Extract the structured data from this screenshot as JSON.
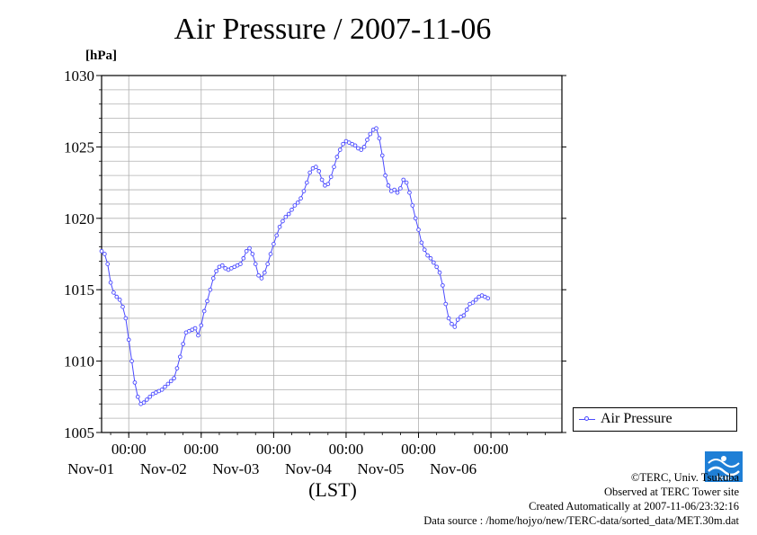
{
  "title": "Air Pressure / 2007-11-06",
  "unit_label": "[hPa]",
  "x_axis_label": "(LST)",
  "legend": {
    "label": "Air Pressure"
  },
  "credits": {
    "copyright": "©TERC, Univ. Tsukuba",
    "observed": "Observed at TERC Tower site",
    "created": "Created Automatically at 2007-11-06/23:32:16",
    "source": "Data source : /home/hojyo/new/TERC-data/sorted_data/MET.30m.dat"
  },
  "logo": {
    "icon": "terc-logo-icon",
    "text": "TERC"
  },
  "colors": {
    "series": "#4a4aff",
    "grid": "#b0b0b0",
    "axis": "#000000"
  },
  "chart_data": {
    "type": "line",
    "title": "Air Pressure / 2007-11-06",
    "ylabel": "[hPa]",
    "xlabel": "(LST)",
    "ylim": [
      1005,
      1030
    ],
    "yticks": [
      "1005",
      "1010",
      "1015",
      "1020",
      "1025",
      "1030"
    ],
    "xlim": [
      "2007-10-31 15:00",
      "2007-11-06 23:30"
    ],
    "xticks": [
      {
        "time": "00:00",
        "date": "Nov-01"
      },
      {
        "time": "00:00",
        "date": "Nov-02"
      },
      {
        "time": "00:00",
        "date": "Nov-03"
      },
      {
        "time": "00:00",
        "date": "Nov-04"
      },
      {
        "time": "00:00",
        "date": "Nov-05"
      },
      {
        "time": "00:00",
        "date": "Nov-06"
      }
    ],
    "grid": true,
    "legend_position": "right-bottom",
    "series": [
      {
        "name": "Air Pressure",
        "points": [
          [
            "2007-10-31 15:00",
            1017.7
          ],
          [
            "2007-10-31 16:00",
            1017.5
          ],
          [
            "2007-10-31 17:00",
            1016.8
          ],
          [
            "2007-10-31 18:00",
            1015.5
          ],
          [
            "2007-10-31 19:00",
            1014.8
          ],
          [
            "2007-10-31 20:00",
            1014.5
          ],
          [
            "2007-10-31 21:00",
            1014.3
          ],
          [
            "2007-10-31 22:00",
            1013.8
          ],
          [
            "2007-10-31 23:00",
            1013.0
          ],
          [
            "2007-11-01 00:00",
            1011.5
          ],
          [
            "2007-11-01 01:00",
            1010.0
          ],
          [
            "2007-11-01 02:00",
            1008.5
          ],
          [
            "2007-11-01 03:00",
            1007.5
          ],
          [
            "2007-11-01 04:00",
            1007.0
          ],
          [
            "2007-11-01 05:00",
            1007.1
          ],
          [
            "2007-11-01 06:00",
            1007.3
          ],
          [
            "2007-11-01 07:00",
            1007.5
          ],
          [
            "2007-11-01 08:00",
            1007.7
          ],
          [
            "2007-11-01 09:00",
            1007.8
          ],
          [
            "2007-11-01 10:00",
            1007.9
          ],
          [
            "2007-11-01 11:00",
            1008.0
          ],
          [
            "2007-11-01 12:00",
            1008.2
          ],
          [
            "2007-11-01 13:00",
            1008.4
          ],
          [
            "2007-11-01 14:00",
            1008.6
          ],
          [
            "2007-11-01 15:00",
            1008.8
          ],
          [
            "2007-11-01 16:00",
            1009.5
          ],
          [
            "2007-11-01 17:00",
            1010.3
          ],
          [
            "2007-11-01 18:00",
            1011.2
          ],
          [
            "2007-11-01 19:00",
            1012.0
          ],
          [
            "2007-11-01 20:00",
            1012.1
          ],
          [
            "2007-11-01 21:00",
            1012.2
          ],
          [
            "2007-11-01 22:00",
            1012.3
          ],
          [
            "2007-11-01 23:00",
            1011.8
          ],
          [
            "2007-11-02 00:00",
            1012.5
          ],
          [
            "2007-11-02 01:00",
            1013.5
          ],
          [
            "2007-11-02 02:00",
            1014.2
          ],
          [
            "2007-11-02 03:00",
            1015.0
          ],
          [
            "2007-11-02 04:00",
            1015.8
          ],
          [
            "2007-11-02 05:00",
            1016.3
          ],
          [
            "2007-11-02 06:00",
            1016.6
          ],
          [
            "2007-11-02 07:00",
            1016.7
          ],
          [
            "2007-11-02 08:00",
            1016.5
          ],
          [
            "2007-11-02 09:00",
            1016.4
          ],
          [
            "2007-11-02 10:00",
            1016.5
          ],
          [
            "2007-11-02 11:00",
            1016.6
          ],
          [
            "2007-11-02 12:00",
            1016.7
          ],
          [
            "2007-11-02 13:00",
            1016.8
          ],
          [
            "2007-11-02 14:00",
            1017.2
          ],
          [
            "2007-11-02 15:00",
            1017.7
          ],
          [
            "2007-11-02 16:00",
            1017.9
          ],
          [
            "2007-11-02 17:00",
            1017.5
          ],
          [
            "2007-11-02 18:00",
            1016.8
          ],
          [
            "2007-11-02 19:00",
            1016.0
          ],
          [
            "2007-11-02 20:00",
            1015.8
          ],
          [
            "2007-11-02 21:00",
            1016.2
          ],
          [
            "2007-11-02 22:00",
            1016.8
          ],
          [
            "2007-11-02 23:00",
            1017.5
          ],
          [
            "2007-11-03 00:00",
            1018.2
          ],
          [
            "2007-11-03 01:00",
            1018.8
          ],
          [
            "2007-11-03 02:00",
            1019.4
          ],
          [
            "2007-11-03 03:00",
            1019.8
          ],
          [
            "2007-11-03 04:00",
            1020.1
          ],
          [
            "2007-11-03 05:00",
            1020.3
          ],
          [
            "2007-11-03 06:00",
            1020.6
          ],
          [
            "2007-11-03 07:00",
            1020.9
          ],
          [
            "2007-11-03 08:00",
            1021.1
          ],
          [
            "2007-11-03 09:00",
            1021.4
          ],
          [
            "2007-11-03 10:00",
            1021.9
          ],
          [
            "2007-11-03 11:00",
            1022.5
          ],
          [
            "2007-11-03 12:00",
            1023.2
          ],
          [
            "2007-11-03 13:00",
            1023.5
          ],
          [
            "2007-11-03 14:00",
            1023.6
          ],
          [
            "2007-11-03 15:00",
            1023.3
          ],
          [
            "2007-11-03 16:00",
            1022.7
          ],
          [
            "2007-11-03 17:00",
            1022.3
          ],
          [
            "2007-11-03 18:00",
            1022.4
          ],
          [
            "2007-11-03 19:00",
            1022.9
          ],
          [
            "2007-11-03 20:00",
            1023.6
          ],
          [
            "2007-11-03 21:00",
            1024.3
          ],
          [
            "2007-11-03 22:00",
            1024.8
          ],
          [
            "2007-11-03 23:00",
            1025.2
          ],
          [
            "2007-11-04 00:00",
            1025.4
          ],
          [
            "2007-11-04 01:00",
            1025.3
          ],
          [
            "2007-11-04 02:00",
            1025.2
          ],
          [
            "2007-11-04 03:00",
            1025.1
          ],
          [
            "2007-11-04 04:00",
            1024.9
          ],
          [
            "2007-11-04 05:00",
            1024.8
          ],
          [
            "2007-11-04 06:00",
            1025.0
          ],
          [
            "2007-11-04 07:00",
            1025.5
          ],
          [
            "2007-11-04 08:00",
            1025.9
          ],
          [
            "2007-11-04 09:00",
            1026.2
          ],
          [
            "2007-11-04 10:00",
            1026.3
          ],
          [
            "2007-11-04 11:00",
            1025.6
          ],
          [
            "2007-11-04 12:00",
            1024.4
          ],
          [
            "2007-11-04 13:00",
            1023.0
          ],
          [
            "2007-11-04 14:00",
            1022.3
          ],
          [
            "2007-11-04 15:00",
            1021.9
          ],
          [
            "2007-11-04 16:00",
            1022.0
          ],
          [
            "2007-11-04 17:00",
            1021.8
          ],
          [
            "2007-11-04 18:00",
            1022.1
          ],
          [
            "2007-11-04 19:00",
            1022.7
          ],
          [
            "2007-11-04 20:00",
            1022.5
          ],
          [
            "2007-11-04 21:00",
            1021.8
          ],
          [
            "2007-11-04 22:00",
            1020.9
          ],
          [
            "2007-11-04 23:00",
            1020.0
          ],
          [
            "2007-11-05 00:00",
            1019.2
          ],
          [
            "2007-11-05 01:00",
            1018.3
          ],
          [
            "2007-11-05 02:00",
            1017.8
          ],
          [
            "2007-11-05 03:00",
            1017.4
          ],
          [
            "2007-11-05 04:00",
            1017.2
          ],
          [
            "2007-11-05 05:00",
            1016.9
          ],
          [
            "2007-11-05 06:00",
            1016.6
          ],
          [
            "2007-11-05 07:00",
            1016.2
          ],
          [
            "2007-11-05 08:00",
            1015.3
          ],
          [
            "2007-11-05 09:00",
            1014.0
          ],
          [
            "2007-11-05 10:00",
            1013.0
          ],
          [
            "2007-11-05 11:00",
            1012.6
          ],
          [
            "2007-11-05 12:00",
            1012.4
          ],
          [
            "2007-11-05 13:00",
            1012.9
          ],
          [
            "2007-11-05 14:00",
            1013.1
          ],
          [
            "2007-11-05 15:00",
            1013.2
          ],
          [
            "2007-11-05 16:00",
            1013.6
          ],
          [
            "2007-11-05 17:00",
            1014.0
          ],
          [
            "2007-11-05 18:00",
            1014.1
          ],
          [
            "2007-11-05 19:00",
            1014.3
          ],
          [
            "2007-11-05 20:00",
            1014.5
          ],
          [
            "2007-11-05 21:00",
            1014.6
          ],
          [
            "2007-11-05 22:00",
            1014.5
          ],
          [
            "2007-11-05 23:00",
            1014.4
          ]
        ]
      }
    ]
  }
}
